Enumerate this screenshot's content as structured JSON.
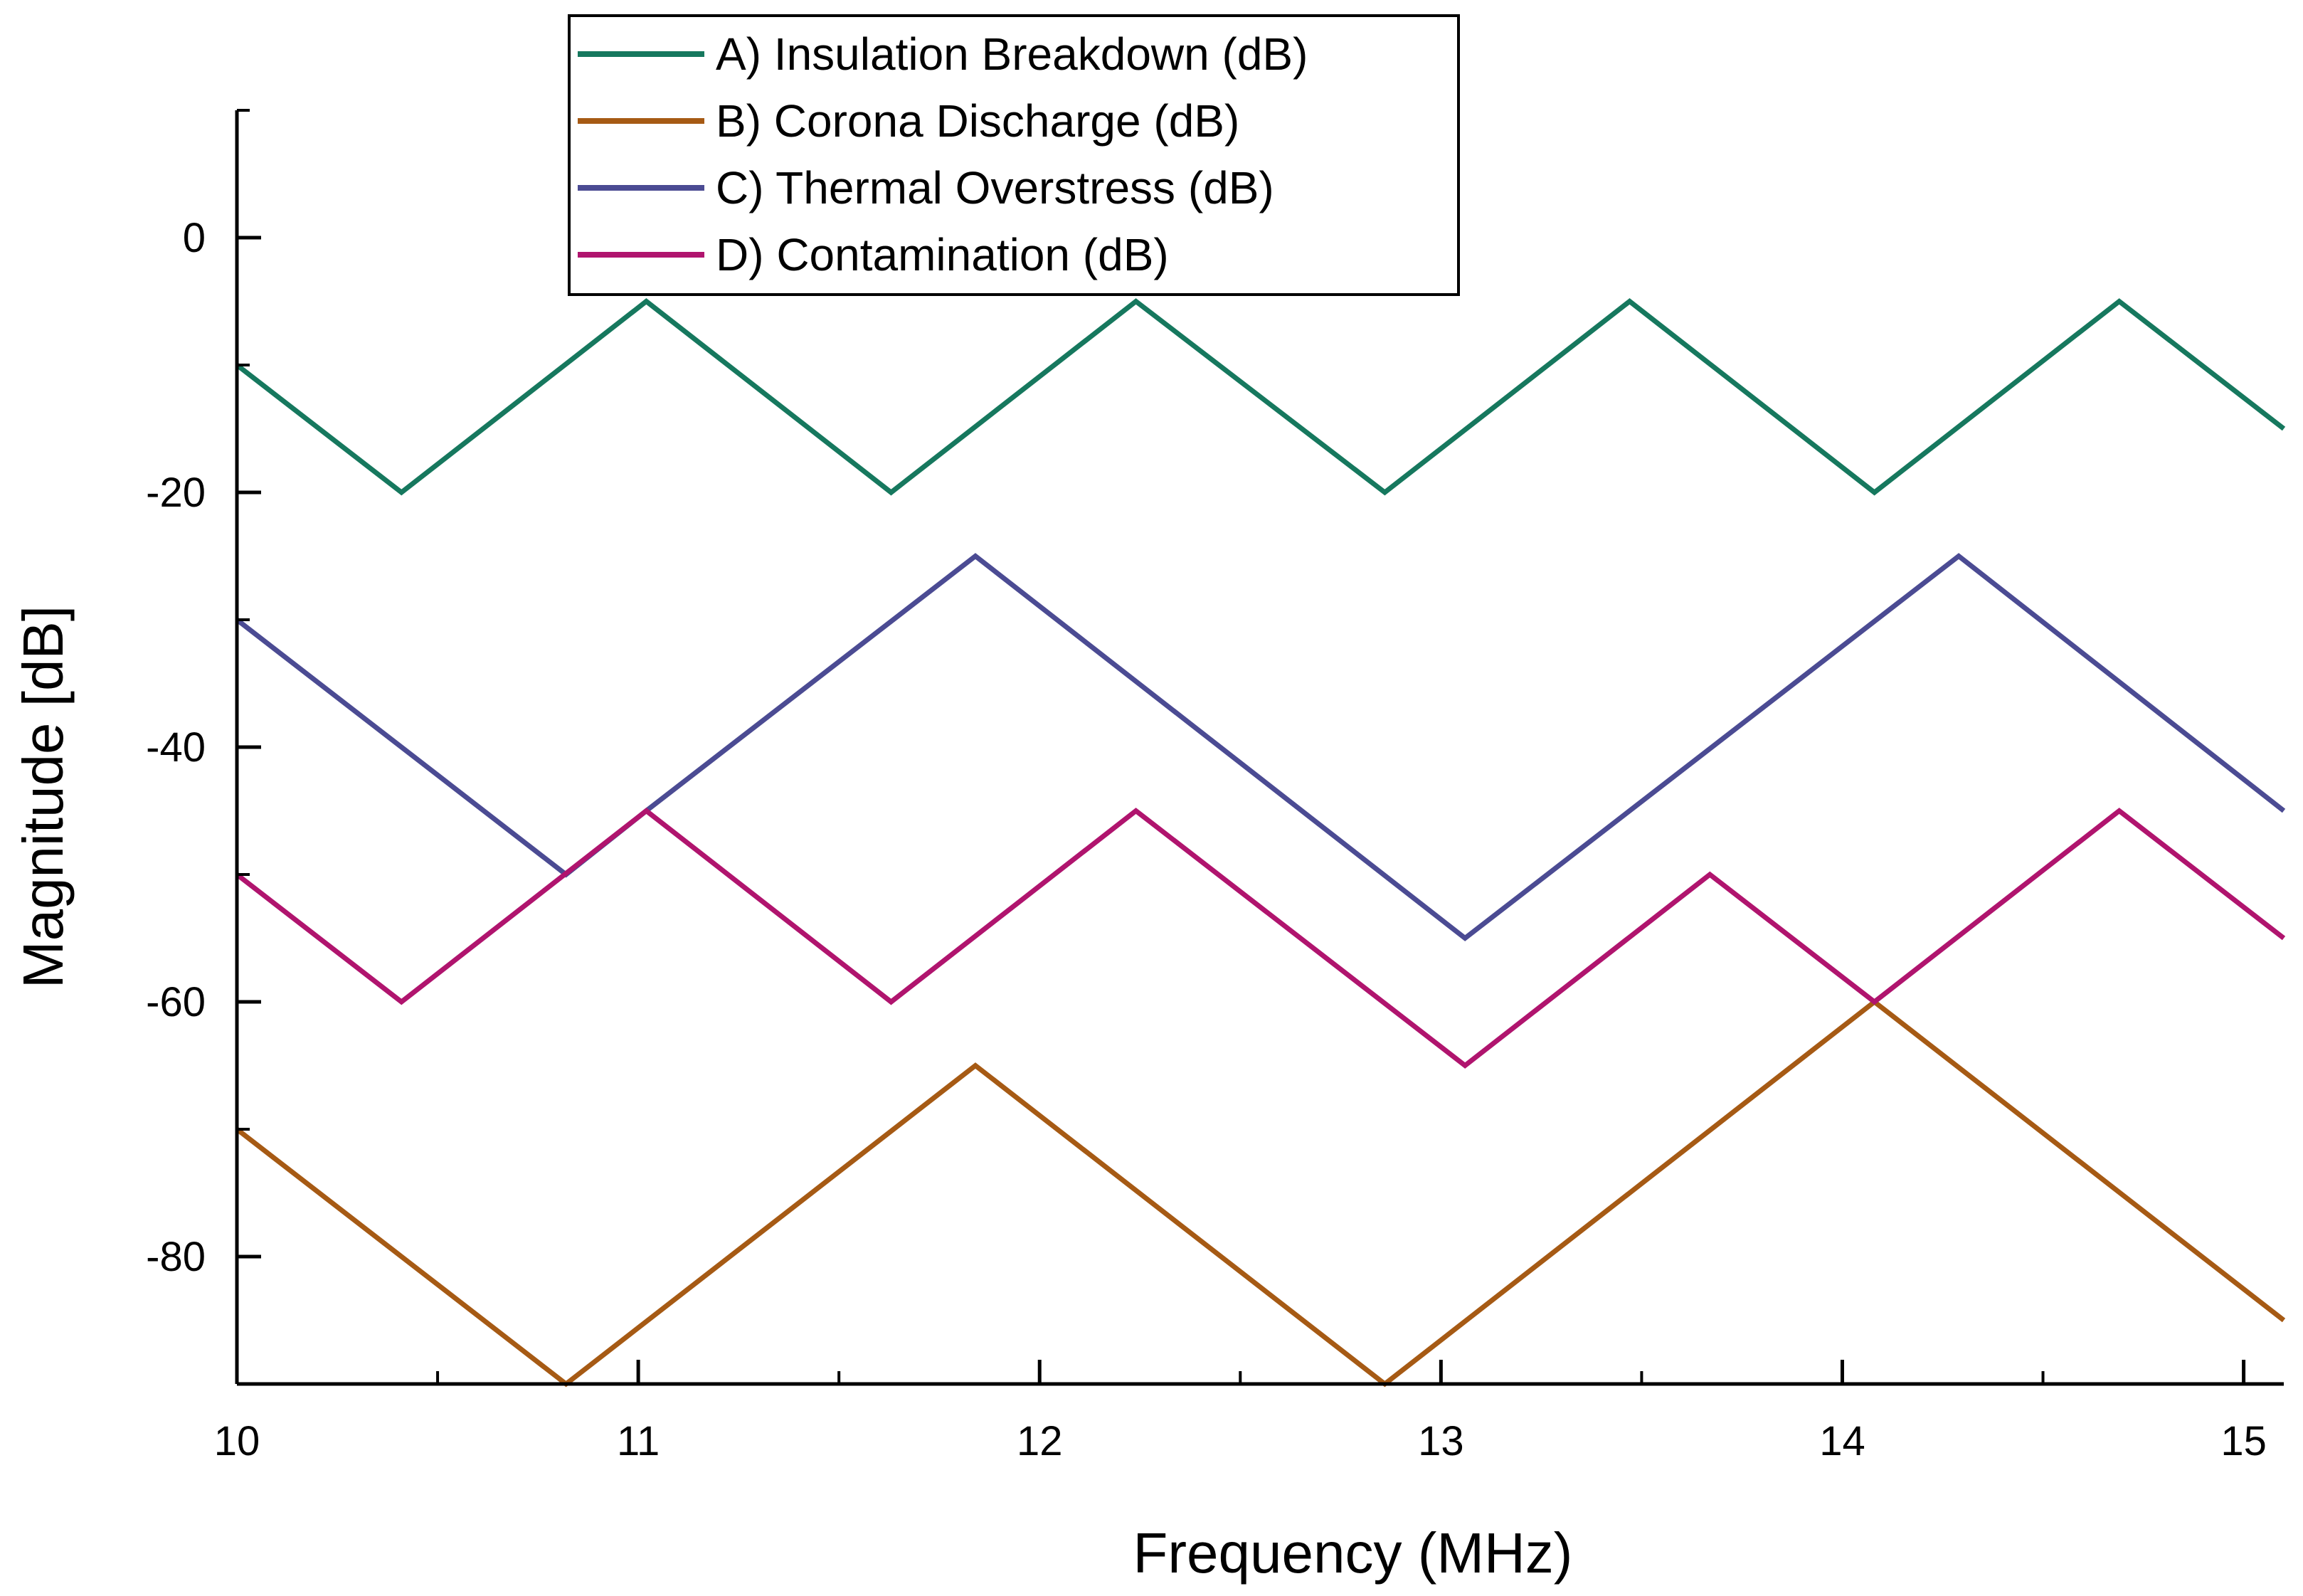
{
  "chart_data": {
    "type": "line",
    "title": "",
    "xlabel": "Frequency (MHz)",
    "ylabel": "Magnitude [dB]",
    "xlim": [
      10,
      15.1
    ],
    "ylim": [
      -90,
      10
    ],
    "xticks": [
      10,
      11,
      12,
      13,
      14,
      15
    ],
    "yticks": [
      0,
      -20,
      -40,
      -60,
      -80
    ],
    "xtick_labels": [
      "10",
      "11",
      "12",
      "13",
      "14",
      "15"
    ],
    "ytick_labels": [
      "0",
      "-20",
      "-40",
      "-60",
      "-80"
    ],
    "grid": false,
    "legend_position": "top-center",
    "series": [
      {
        "name": "A) Insulation Breakdown (dB)",
        "color": "#16785e",
        "x": [
          10.0,
          10.41,
          11.02,
          11.63,
          12.24,
          12.86,
          13.47,
          14.08,
          14.69,
          15.1
        ],
        "y": [
          -10,
          -20,
          -5,
          -20,
          -5,
          -20,
          -5,
          -20,
          -5,
          -15
        ]
      },
      {
        "name": "B) Corona Discharge (dB)",
        "color": "#a65a14",
        "x": [
          10.0,
          10.82,
          11.84,
          12.86,
          14.08,
          15.1
        ],
        "y": [
          -70,
          -90,
          -65,
          -90,
          -60,
          -85
        ]
      },
      {
        "name": "C) Thermal Overstress (dB)",
        "color": "#4b4b93",
        "x": [
          10.0,
          10.82,
          11.02,
          11.84,
          13.06,
          14.29,
          15.1
        ],
        "y": [
          -30,
          -50,
          -45,
          -25,
          -55,
          -25,
          -45
        ]
      },
      {
        "name": "D) Contamination (dB)",
        "color": "#b0146e",
        "x": [
          10.0,
          10.41,
          11.02,
          11.63,
          12.24,
          13.06,
          13.67,
          14.08,
          14.69,
          15.1
        ],
        "y": [
          -50,
          -60,
          -45,
          -60,
          -45,
          -65,
          -50,
          -60,
          -45,
          -55
        ]
      }
    ]
  }
}
